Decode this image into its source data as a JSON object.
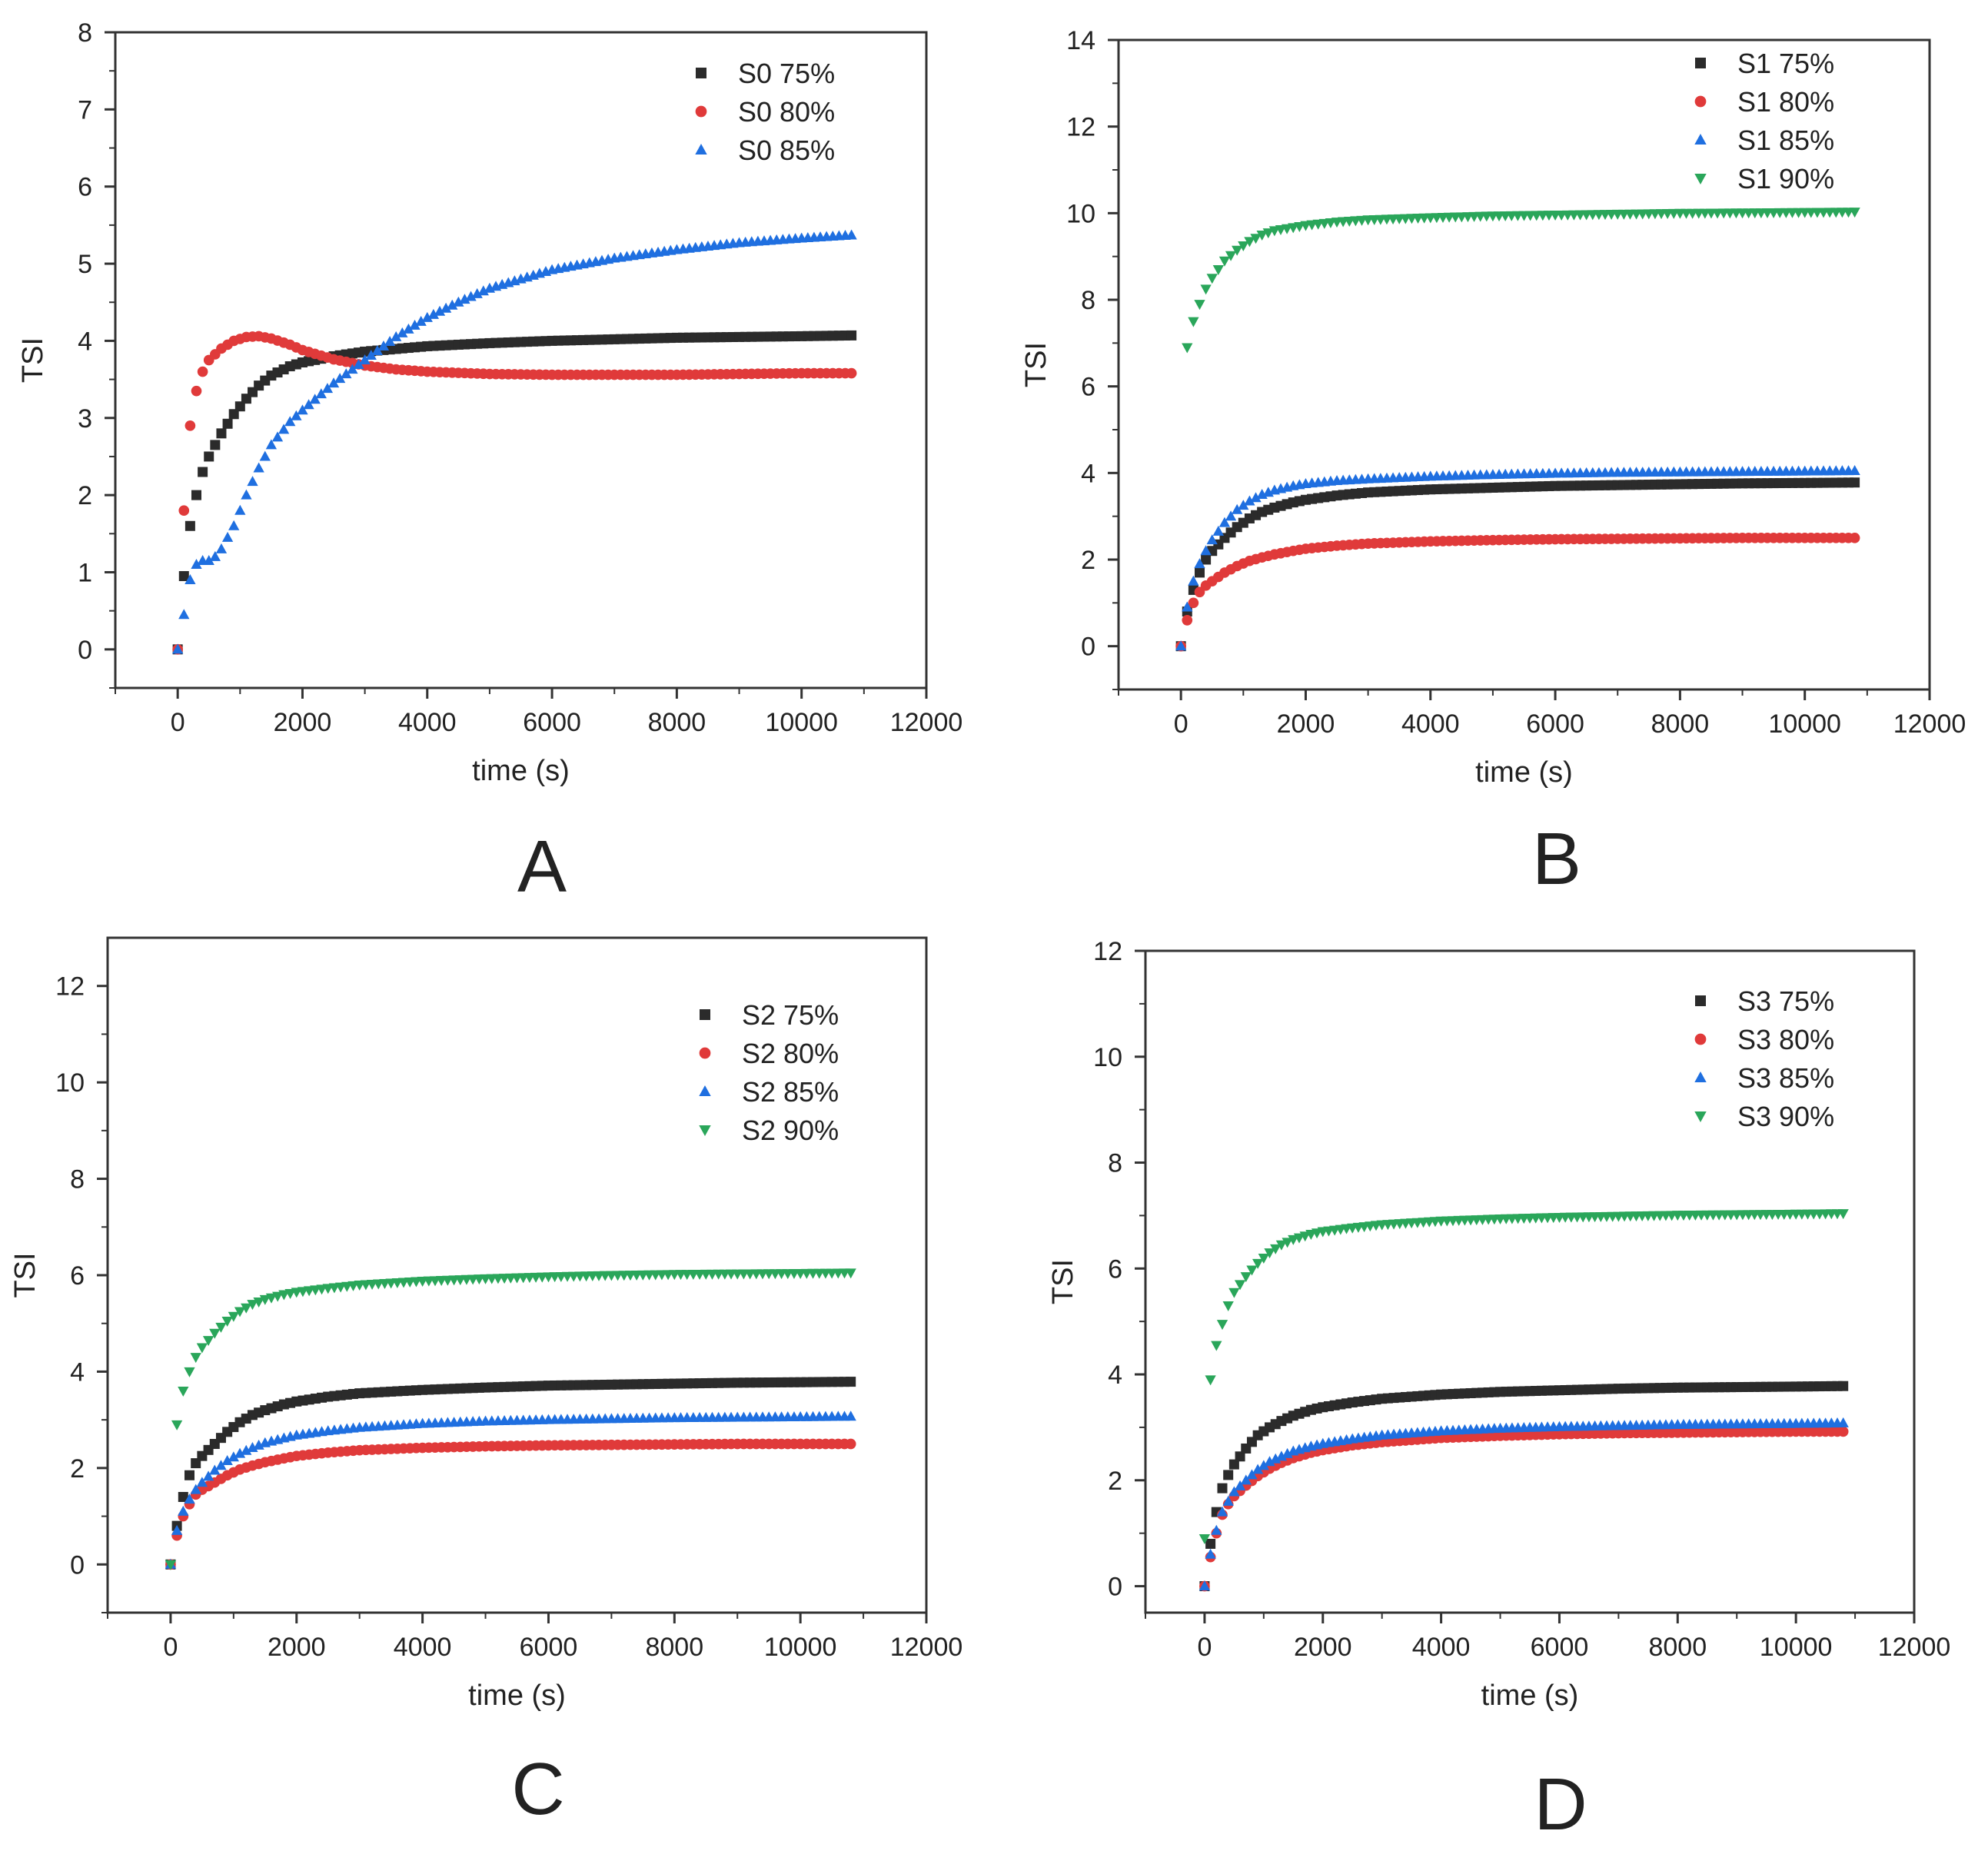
{
  "chart_data": [
    {
      "type": "scatter",
      "panel_label": "A",
      "xlabel": "time (s)",
      "ylabel": "TSI",
      "xlim": [
        -1000,
        12000
      ],
      "ylim": [
        -0.5,
        8
      ],
      "xticks": [
        0,
        2000,
        4000,
        6000,
        8000,
        10000,
        12000
      ],
      "yticks": [
        0,
        1,
        2,
        3,
        4,
        5,
        6,
        7,
        8
      ],
      "legend_position": "top-right",
      "grid": false,
      "series": [
        {
          "name": "S0 75%",
          "marker": "square",
          "color": "#2b2b2b",
          "x": [
            0,
            100,
            200,
            300,
            400,
            500,
            700,
            900,
            1100,
            1300,
            1500,
            1800,
            2000,
            2500,
            3000,
            4000,
            5000,
            6000,
            7000,
            8000,
            9000,
            10000,
            10800
          ],
          "y": [
            0,
            0.95,
            1.6,
            2.0,
            2.3,
            2.5,
            2.8,
            3.05,
            3.25,
            3.42,
            3.55,
            3.67,
            3.72,
            3.8,
            3.86,
            3.93,
            3.97,
            4.0,
            4.02,
            4.04,
            4.05,
            4.06,
            4.07
          ]
        },
        {
          "name": "S0 80%",
          "marker": "circle",
          "color": "#e03a3a",
          "x": [
            0,
            100,
            200,
            300,
            400,
            500,
            700,
            900,
            1100,
            1300,
            1500,
            1800,
            2000,
            2500,
            3000,
            3500,
            4000,
            5000,
            6000,
            7000,
            8000,
            9000,
            10000,
            10800
          ],
          "y": [
            0,
            1.8,
            2.9,
            3.35,
            3.6,
            3.75,
            3.9,
            4.0,
            4.05,
            4.06,
            4.03,
            3.95,
            3.88,
            3.76,
            3.68,
            3.63,
            3.6,
            3.57,
            3.56,
            3.56,
            3.56,
            3.57,
            3.58,
            3.58
          ]
        },
        {
          "name": "S0 85%",
          "marker": "triangle",
          "color": "#1f6fe0",
          "x": [
            0,
            100,
            200,
            300,
            400,
            500,
            600,
            700,
            900,
            1100,
            1300,
            1500,
            1800,
            2000,
            2500,
            3000,
            3500,
            4000,
            4500,
            5000,
            6000,
            7000,
            8000,
            9000,
            10000,
            10800
          ],
          "y": [
            0,
            0.45,
            0.9,
            1.1,
            1.15,
            1.15,
            1.2,
            1.3,
            1.6,
            2.0,
            2.35,
            2.65,
            2.95,
            3.1,
            3.45,
            3.75,
            4.05,
            4.3,
            4.5,
            4.68,
            4.92,
            5.07,
            5.18,
            5.27,
            5.33,
            5.37
          ]
        }
      ]
    },
    {
      "type": "scatter",
      "panel_label": "B",
      "xlabel": "time (s)",
      "ylabel": "TSI",
      "xlim": [
        -1000,
        12000
      ],
      "ylim": [
        -1,
        14
      ],
      "xticks": [
        0,
        2000,
        4000,
        6000,
        8000,
        10000,
        12000
      ],
      "yticks": [
        0,
        2,
        4,
        6,
        8,
        10,
        12,
        14
      ],
      "legend_position": "top-right",
      "grid": false,
      "series": [
        {
          "name": "S1 75%",
          "marker": "square",
          "color": "#2b2b2b",
          "x": [
            0,
            100,
            200,
            300,
            400,
            500,
            700,
            900,
            1100,
            1300,
            1500,
            1800,
            2000,
            2500,
            3000,
            4000,
            5000,
            6000,
            7000,
            8000,
            9000,
            10000,
            10800
          ],
          "y": [
            0,
            0.8,
            1.3,
            1.7,
            2.0,
            2.2,
            2.5,
            2.75,
            2.95,
            3.1,
            3.2,
            3.32,
            3.38,
            3.48,
            3.55,
            3.62,
            3.66,
            3.7,
            3.72,
            3.74,
            3.76,
            3.77,
            3.78
          ]
        },
        {
          "name": "S1 80%",
          "marker": "circle",
          "color": "#e03a3a",
          "x": [
            0,
            100,
            200,
            300,
            400,
            500,
            700,
            900,
            1100,
            1300,
            1500,
            1800,
            2000,
            2500,
            3000,
            4000,
            5000,
            6000,
            7000,
            8000,
            9000,
            10000,
            10800
          ],
          "y": [
            0,
            0.6,
            1.0,
            1.25,
            1.4,
            1.5,
            1.7,
            1.85,
            1.97,
            2.05,
            2.12,
            2.2,
            2.25,
            2.32,
            2.37,
            2.42,
            2.45,
            2.47,
            2.48,
            2.49,
            2.5,
            2.5,
            2.5
          ]
        },
        {
          "name": "S1 85%",
          "marker": "triangle",
          "color": "#1f6fe0",
          "x": [
            0,
            100,
            200,
            300,
            400,
            500,
            700,
            900,
            1100,
            1300,
            1500,
            1800,
            2000,
            2500,
            3000,
            4000,
            5000,
            6000,
            7000,
            8000,
            9000,
            10000,
            10800
          ],
          "y": [
            0,
            0.9,
            1.5,
            1.9,
            2.2,
            2.45,
            2.85,
            3.15,
            3.35,
            3.5,
            3.6,
            3.7,
            3.75,
            3.82,
            3.86,
            3.92,
            3.96,
            3.99,
            4.01,
            4.02,
            4.03,
            4.04,
            4.05
          ]
        },
        {
          "name": "S1 90%",
          "marker": "triangle-down",
          "color": "#2aa65a",
          "x": [
            100,
            200,
            300,
            400,
            500,
            600,
            700,
            900,
            1100,
            1300,
            1500,
            1800,
            2000,
            2500,
            3000,
            4000,
            5000,
            6000,
            7000,
            8000,
            9000,
            10000,
            10800
          ],
          "y": [
            6.9,
            7.5,
            7.9,
            8.25,
            8.5,
            8.7,
            8.9,
            9.15,
            9.35,
            9.5,
            9.6,
            9.67,
            9.72,
            9.8,
            9.85,
            9.9,
            9.94,
            9.96,
            9.98,
            10.0,
            10.01,
            10.02,
            10.03
          ]
        }
      ]
    },
    {
      "type": "scatter",
      "panel_label": "C",
      "xlabel": "time (s)",
      "ylabel": "TSI",
      "xlim": [
        -1000,
        12000
      ],
      "ylim": [
        -1,
        13
      ],
      "xticks": [
        0,
        2000,
        4000,
        6000,
        8000,
        10000,
        12000
      ],
      "yticks": [
        0,
        2,
        4,
        6,
        8,
        10,
        12
      ],
      "legend_position": "top-right",
      "grid": false,
      "series": [
        {
          "name": "S2 75%",
          "marker": "square",
          "color": "#2b2b2b",
          "x": [
            0,
            100,
            200,
            300,
            400,
            500,
            700,
            900,
            1100,
            1300,
            1500,
            1800,
            2000,
            2500,
            3000,
            4000,
            5000,
            6000,
            7000,
            8000,
            9000,
            10000,
            10800
          ],
          "y": [
            0,
            0.8,
            1.4,
            1.85,
            2.1,
            2.25,
            2.5,
            2.75,
            2.95,
            3.1,
            3.2,
            3.32,
            3.38,
            3.48,
            3.55,
            3.62,
            3.67,
            3.71,
            3.73,
            3.75,
            3.77,
            3.78,
            3.79
          ]
        },
        {
          "name": "S2 80%",
          "marker": "circle",
          "color": "#e03a3a",
          "x": [
            0,
            100,
            200,
            300,
            400,
            500,
            700,
            900,
            1100,
            1300,
            1500,
            1800,
            2000,
            2500,
            3000,
            4000,
            5000,
            6000,
            7000,
            8000,
            9000,
            10000,
            10800
          ],
          "y": [
            0,
            0.6,
            1.0,
            1.25,
            1.45,
            1.55,
            1.7,
            1.85,
            1.97,
            2.05,
            2.12,
            2.2,
            2.25,
            2.32,
            2.37,
            2.42,
            2.45,
            2.47,
            2.48,
            2.49,
            2.5,
            2.5,
            2.5
          ]
        },
        {
          "name": "S2 85%",
          "marker": "triangle",
          "color": "#1f6fe0",
          "x": [
            0,
            100,
            200,
            300,
            400,
            500,
            700,
            900,
            1100,
            1300,
            1500,
            1800,
            2000,
            2500,
            3000,
            4000,
            5000,
            6000,
            7000,
            8000,
            9000,
            10000,
            10800
          ],
          "y": [
            0,
            0.7,
            1.1,
            1.35,
            1.55,
            1.7,
            1.95,
            2.15,
            2.3,
            2.42,
            2.52,
            2.62,
            2.68,
            2.77,
            2.84,
            2.92,
            2.97,
            3.0,
            3.02,
            3.04,
            3.05,
            3.06,
            3.07
          ]
        },
        {
          "name": "S2 90%",
          "marker": "triangle-down",
          "color": "#2aa65a",
          "x": [
            0,
            100,
            200,
            300,
            400,
            500,
            700,
            900,
            1100,
            1300,
            1500,
            1800,
            2000,
            2500,
            3000,
            4000,
            5000,
            6000,
            7000,
            8000,
            9000,
            10000,
            10800
          ],
          "y": [
            0,
            2.9,
            3.6,
            4.0,
            4.3,
            4.5,
            4.8,
            5.05,
            5.25,
            5.4,
            5.5,
            5.6,
            5.65,
            5.73,
            5.8,
            5.88,
            5.93,
            5.97,
            6.0,
            6.02,
            6.03,
            6.04,
            6.05
          ]
        }
      ]
    },
    {
      "type": "scatter",
      "panel_label": "D",
      "xlabel": "time (s)",
      "ylabel": "TSI",
      "xlim": [
        -1000,
        12000
      ],
      "ylim": [
        -0.5,
        12
      ],
      "xticks": [
        0,
        2000,
        4000,
        6000,
        8000,
        10000,
        12000
      ],
      "yticks": [
        0,
        2,
        4,
        6,
        8,
        10,
        12
      ],
      "legend_position": "top-right",
      "grid": false,
      "series": [
        {
          "name": "S3 75%",
          "marker": "square",
          "color": "#2b2b2b",
          "x": [
            0,
            100,
            200,
            300,
            400,
            500,
            700,
            900,
            1100,
            1300,
            1500,
            1800,
            2000,
            2500,
            3000,
            4000,
            5000,
            6000,
            7000,
            8000,
            9000,
            10000,
            10800
          ],
          "y": [
            0,
            0.8,
            1.4,
            1.85,
            2.1,
            2.3,
            2.6,
            2.85,
            3.0,
            3.12,
            3.22,
            3.33,
            3.38,
            3.47,
            3.54,
            3.62,
            3.67,
            3.7,
            3.73,
            3.75,
            3.76,
            3.77,
            3.78
          ]
        },
        {
          "name": "S3 80%",
          "marker": "circle",
          "color": "#e03a3a",
          "x": [
            0,
            100,
            200,
            300,
            400,
            500,
            700,
            900,
            1100,
            1300,
            1500,
            1800,
            2000,
            2500,
            3000,
            4000,
            5000,
            6000,
            7000,
            8000,
            9000,
            10000,
            10800
          ],
          "y": [
            0,
            0.55,
            1.0,
            1.35,
            1.55,
            1.7,
            1.9,
            2.08,
            2.22,
            2.33,
            2.42,
            2.52,
            2.57,
            2.66,
            2.72,
            2.8,
            2.84,
            2.87,
            2.89,
            2.9,
            2.91,
            2.92,
            2.92
          ]
        },
        {
          "name": "S3 85%",
          "marker": "triangle",
          "color": "#1f6fe0",
          "x": [
            0,
            100,
            200,
            300,
            400,
            500,
            700,
            900,
            1100,
            1300,
            1500,
            1800,
            2000,
            2500,
            3000,
            4000,
            5000,
            6000,
            7000,
            8000,
            9000,
            10000,
            10800
          ],
          "y": [
            0,
            0.6,
            1.05,
            1.4,
            1.6,
            1.78,
            2.0,
            2.2,
            2.35,
            2.45,
            2.55,
            2.64,
            2.69,
            2.78,
            2.85,
            2.93,
            2.98,
            3.01,
            3.03,
            3.05,
            3.06,
            3.07,
            3.08
          ]
        },
        {
          "name": "S3 90%",
          "marker": "triangle-down",
          "color": "#2aa65a",
          "x": [
            0,
            100,
            200,
            300,
            400,
            500,
            700,
            900,
            1100,
            1300,
            1500,
            1800,
            2000,
            2500,
            3000,
            4000,
            5000,
            6000,
            7000,
            8000,
            9000,
            10000,
            10800
          ],
          "y": [
            0.9,
            3.9,
            4.55,
            4.95,
            5.3,
            5.55,
            5.85,
            6.1,
            6.3,
            6.45,
            6.55,
            6.65,
            6.7,
            6.77,
            6.83,
            6.9,
            6.94,
            6.97,
            6.99,
            7.01,
            7.02,
            7.03,
            7.04
          ]
        }
      ]
    }
  ]
}
